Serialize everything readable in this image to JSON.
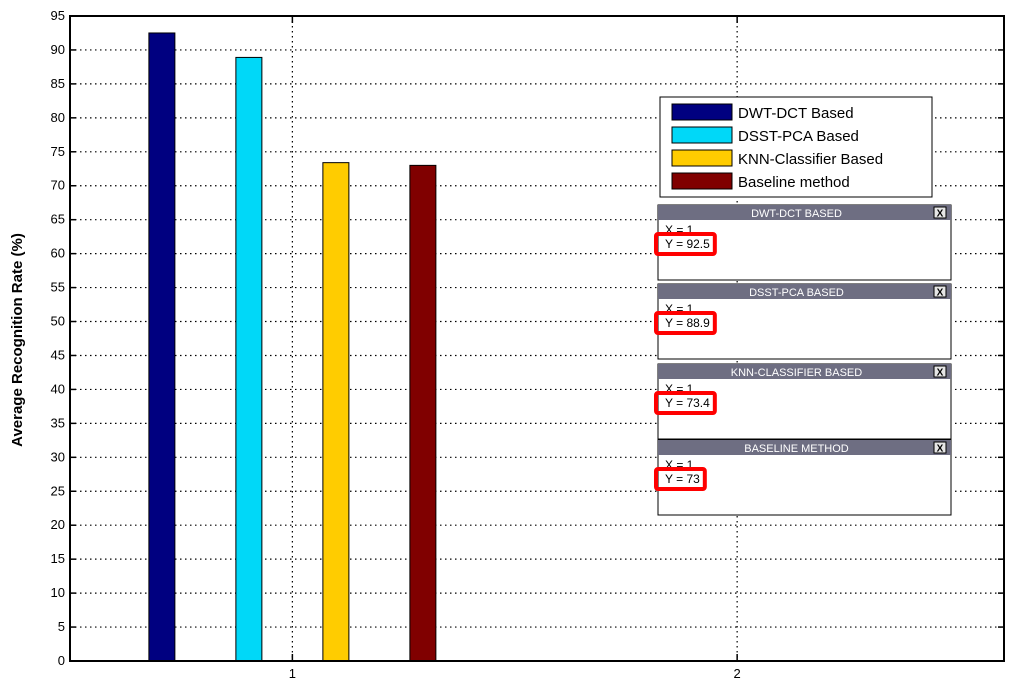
{
  "chart_data": {
    "type": "bar",
    "title": "",
    "xlabel": "",
    "ylabel": "Average Recognition Rate (%)",
    "ylim": [
      0,
      95
    ],
    "xlim": [
      0.5,
      2.6
    ],
    "yticks": [
      0,
      5,
      10,
      15,
      20,
      25,
      30,
      35,
      40,
      45,
      50,
      55,
      60,
      65,
      70,
      75,
      80,
      85,
      90,
      95
    ],
    "xticks": [
      "1",
      "2"
    ],
    "grid": true,
    "legend_position": "top-right",
    "series": [
      {
        "name": "DWT-DCT Based",
        "x": 1,
        "value": 92.5,
        "color": "#000080"
      },
      {
        "name": "DSST-PCA Based",
        "x": 1,
        "value": 88.9,
        "color": "#00d8f8"
      },
      {
        "name": "KNN-Classifier Based",
        "x": 1,
        "value": 73.4,
        "color": "#ffcc00"
      },
      {
        "name": "Baseline method",
        "x": 1,
        "value": 73,
        "color": "#800000"
      }
    ],
    "datatips": [
      {
        "title": "DWT-DCT BASED",
        "x_text": "X = 1",
        "y_text": "Y = 92.5"
      },
      {
        "title": "DSST-PCA BASED",
        "x_text": "X = 1",
        "y_text": "Y = 88.9"
      },
      {
        "title": "KNN-CLASSIFIER BASED",
        "x_text": "X = 1",
        "y_text": "Y = 73.4"
      },
      {
        "title": "BASELINE METHOD",
        "x_text": "X = 1",
        "y_text": "Y = 73"
      }
    ],
    "datatip_close_symbol": "X",
    "highlight_color": "#ff0000",
    "datatip_header_color": "#6e6e82"
  }
}
